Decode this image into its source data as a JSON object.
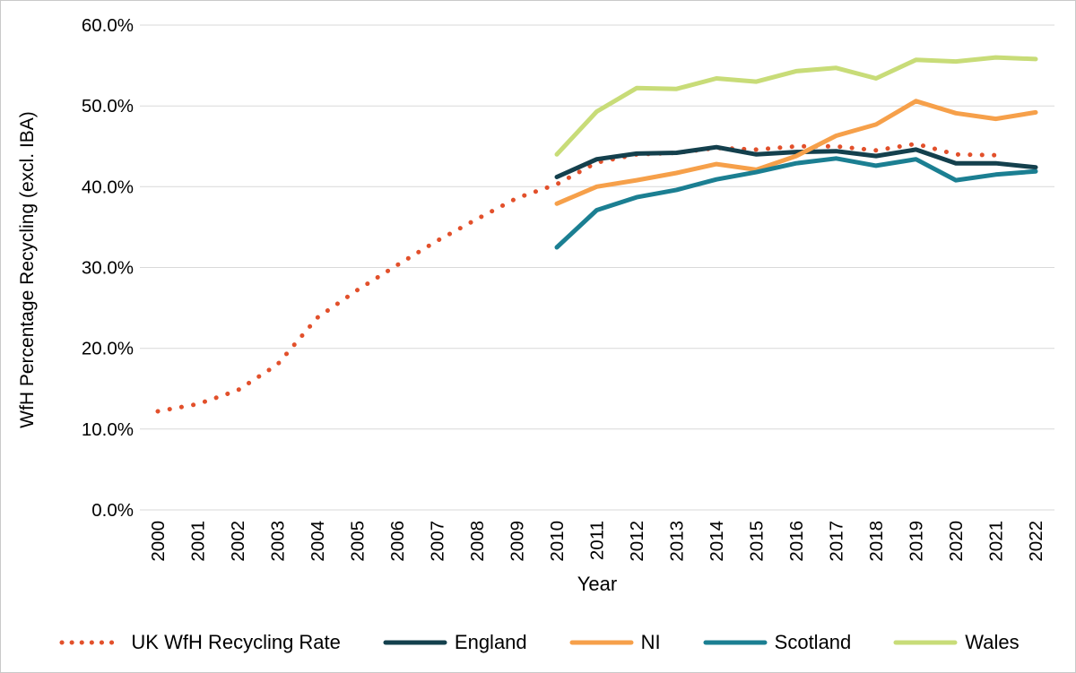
{
  "chart_data": {
    "type": "line",
    "title": "",
    "xlabel": "Year",
    "ylabel": "WfH Percentage Recycling (excl. IBA)",
    "x": [
      2000,
      2001,
      2002,
      2003,
      2004,
      2005,
      2006,
      2007,
      2008,
      2009,
      2010,
      2011,
      2012,
      2013,
      2014,
      2015,
      2016,
      2017,
      2018,
      2019,
      2020,
      2021,
      2022
    ],
    "ylim": [
      0,
      60
    ],
    "y_ticks": [
      "0.0%",
      "10.0%",
      "20.0%",
      "30.0%",
      "40.0%",
      "50.0%",
      "60.0%"
    ],
    "grid": "horizontal",
    "legend_position": "bottom",
    "series": [
      {
        "name": "UK WfH Recycling Rate",
        "style": "dotted",
        "color": "#E2502B",
        "values": [
          12.2,
          13.1,
          14.8,
          18.0,
          23.8,
          27.2,
          30.3,
          33.3,
          36.0,
          38.6,
          40.3,
          43.0,
          44.0,
          44.2,
          44.8,
          44.6,
          45.0,
          45.0,
          44.5,
          45.3,
          44.0,
          43.9,
          null
        ]
      },
      {
        "name": "England",
        "style": "solid",
        "color": "#14404D",
        "values": [
          null,
          null,
          null,
          null,
          null,
          null,
          null,
          null,
          null,
          null,
          41.2,
          43.4,
          44.1,
          44.2,
          44.9,
          44.0,
          44.3,
          44.4,
          43.8,
          44.6,
          42.9,
          42.9,
          42.4
        ]
      },
      {
        "name": "NI",
        "style": "solid",
        "color": "#F6A04A",
        "values": [
          null,
          null,
          null,
          null,
          null,
          null,
          null,
          null,
          null,
          null,
          37.9,
          40.0,
          40.8,
          41.7,
          42.8,
          42.1,
          43.8,
          46.3,
          47.7,
          50.6,
          49.1,
          48.4,
          49.2
        ]
      },
      {
        "name": "Scotland",
        "style": "solid",
        "color": "#1B7F92",
        "values": [
          null,
          null,
          null,
          null,
          null,
          null,
          null,
          null,
          null,
          null,
          32.5,
          37.1,
          38.7,
          39.6,
          40.9,
          41.8,
          42.9,
          43.5,
          42.6,
          43.4,
          40.8,
          41.5,
          41.9
        ]
      },
      {
        "name": "Wales",
        "style": "solid",
        "color": "#C8DC78",
        "values": [
          null,
          null,
          null,
          null,
          null,
          null,
          null,
          null,
          null,
          null,
          44.0,
          49.3,
          52.2,
          52.1,
          53.4,
          53.0,
          54.3,
          54.7,
          53.4,
          55.7,
          55.5,
          56.0,
          55.8
        ]
      }
    ],
    "colors": {
      "gridline": "#D9D9D9",
      "axis_text": "#000000",
      "border": "#C9C9C9"
    }
  }
}
